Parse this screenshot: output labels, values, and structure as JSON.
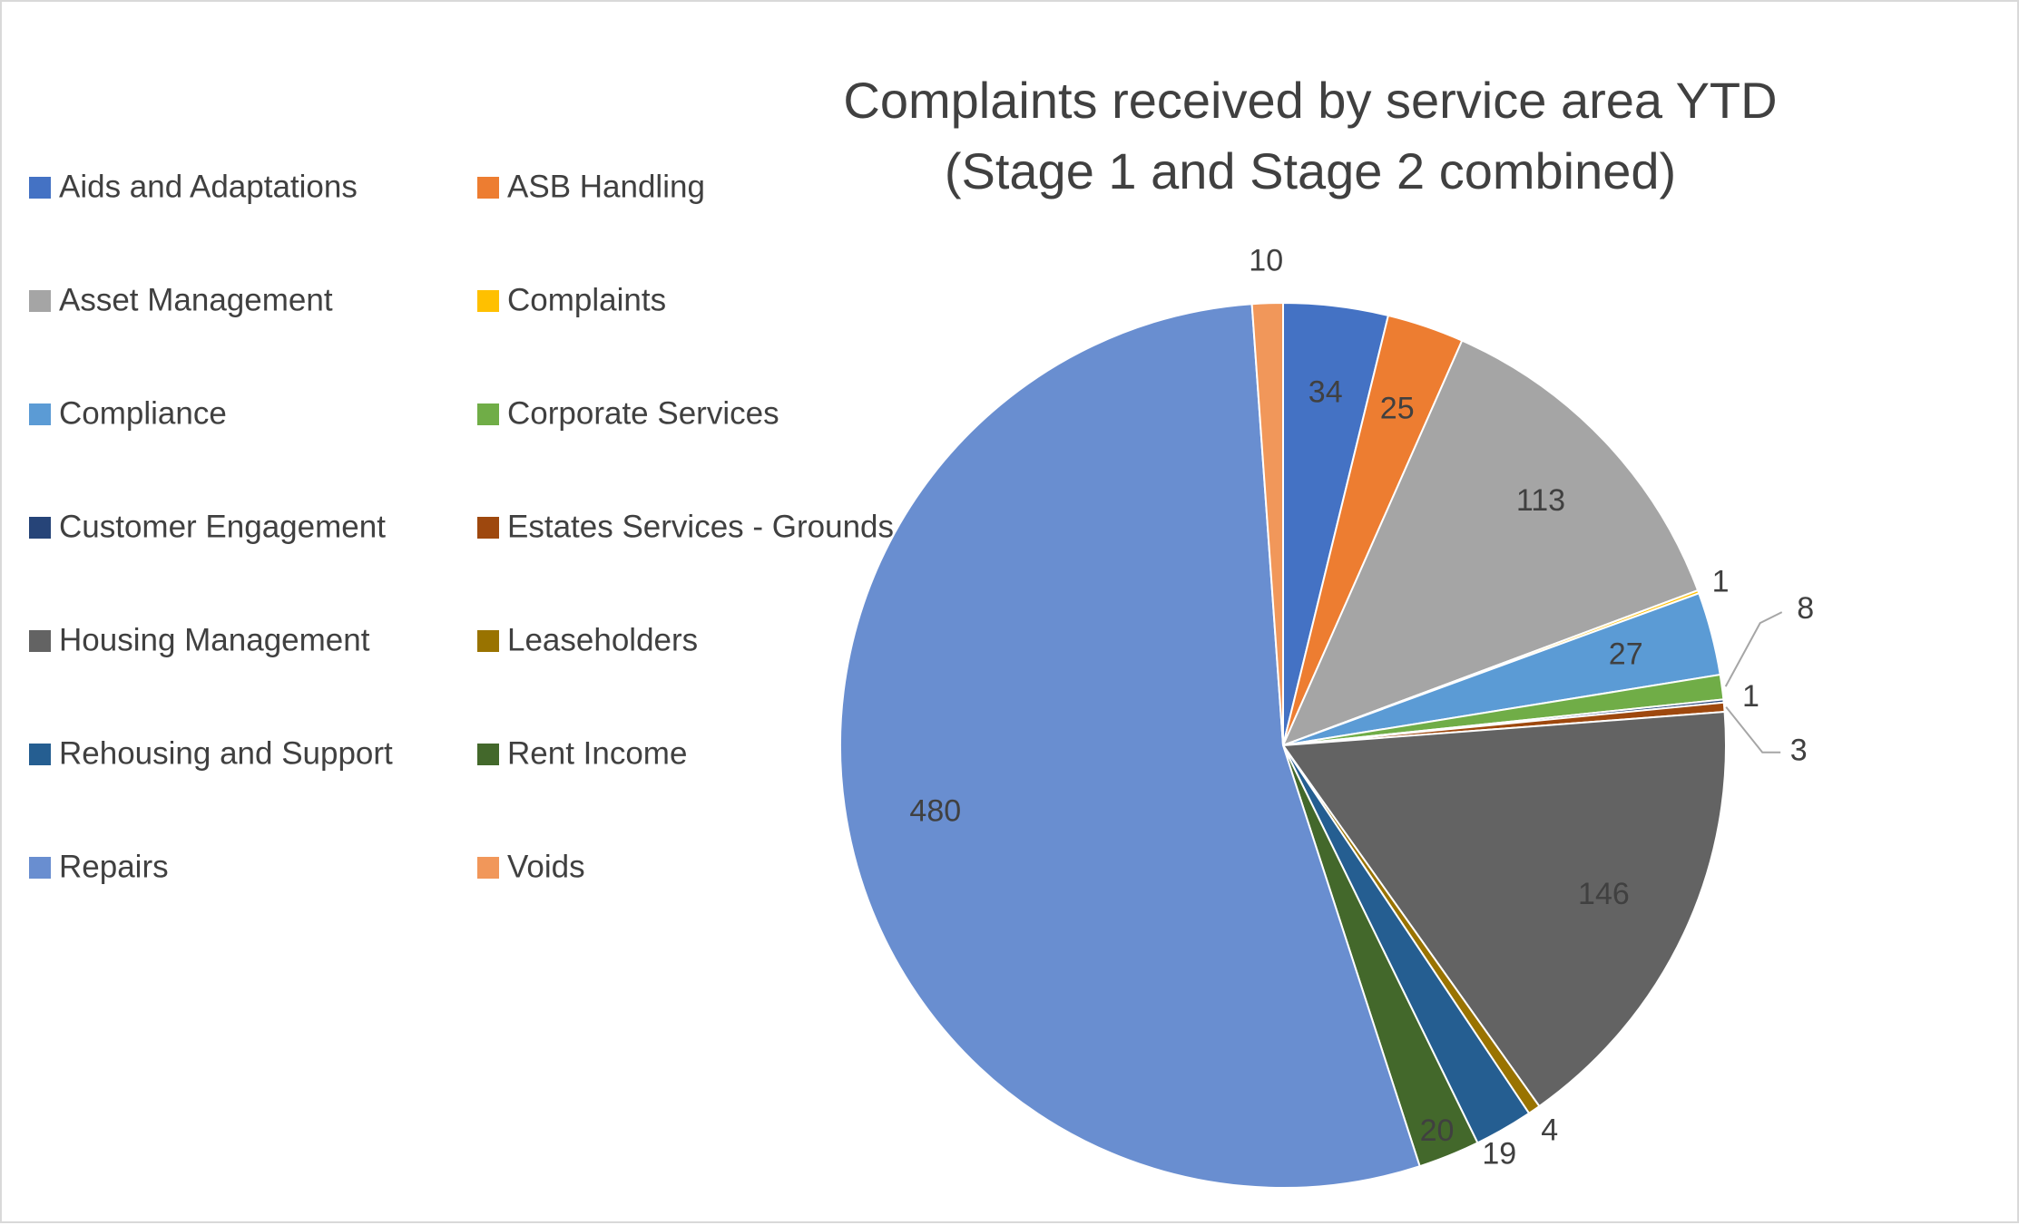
{
  "chart_data": {
    "type": "pie",
    "title": "Complaints received by service area YTD",
    "subtitle": "(Stage 1 and Stage 2 combined)",
    "legend_position": "left",
    "slices": [
      {
        "label": "Aids and Adaptations",
        "value": 34,
        "color": "#4472C4"
      },
      {
        "label": "ASB Handling",
        "value": 25,
        "color": "#ED7D31"
      },
      {
        "label": "Asset Management",
        "value": 113,
        "color": "#A5A5A5"
      },
      {
        "label": "Complaints",
        "value": 1,
        "color": "#FFC000"
      },
      {
        "label": "Compliance",
        "value": 27,
        "color": "#5B9BD5"
      },
      {
        "label": "Corporate Services",
        "value": 8,
        "color": "#70AD47"
      },
      {
        "label": "Customer Engagement",
        "value": 1,
        "color": "#264478"
      },
      {
        "label": "Estates Services - Grounds",
        "value": 3,
        "color": "#9E480E"
      },
      {
        "label": "Housing Management",
        "value": 146,
        "color": "#636363"
      },
      {
        "label": "Leaseholders",
        "value": 4,
        "color": "#997300"
      },
      {
        "label": "Rehousing and Support",
        "value": 19,
        "color": "#255E91"
      },
      {
        "label": "Rent Income",
        "value": 20,
        "color": "#43682B"
      },
      {
        "label": "Repairs",
        "value": 480,
        "color": "#698ED0"
      },
      {
        "label": "Voids",
        "value": 10,
        "color": "#F1975A"
      }
    ]
  }
}
